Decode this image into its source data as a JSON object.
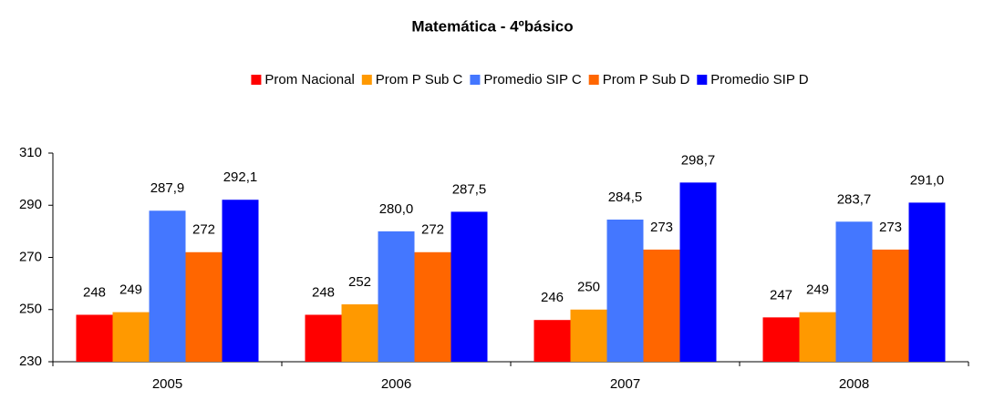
{
  "chart_data": {
    "type": "bar",
    "title": "Matemática - 4ºbásico",
    "categories": [
      "2005",
      "2006",
      "2007",
      "2008"
    ],
    "series": [
      {
        "name": "Prom Nacional",
        "color": "#ff0000",
        "values": [
          248,
          248,
          246,
          247
        ],
        "value_labels": [
          "248",
          "248",
          "246",
          "247"
        ]
      },
      {
        "name": "Prom P Sub C",
        "color": "#ff9900",
        "values": [
          249,
          252,
          250,
          249
        ],
        "value_labels": [
          "249",
          "252",
          "250",
          "249"
        ]
      },
      {
        "name": "Promedio SIP C",
        "color": "#4477ff",
        "values": [
          287.9,
          280.0,
          284.5,
          283.7
        ],
        "value_labels": [
          "287,9",
          "280,0",
          "284,5",
          "283,7"
        ]
      },
      {
        "name": "Prom P Sub D",
        "color": "#ff6600",
        "values": [
          272,
          272,
          273,
          273
        ],
        "value_labels": [
          "272",
          "272",
          "273",
          "273"
        ]
      },
      {
        "name": "Promedio SIP D",
        "color": "#0000ff",
        "values": [
          292.1,
          287.5,
          298.7,
          291.0
        ],
        "value_labels": [
          "292,1",
          "287,5",
          "298,7",
          "291,0"
        ]
      }
    ],
    "ylim": [
      230,
      310
    ],
    "yticks": [
      230,
      250,
      270,
      290,
      310
    ],
    "grid": false,
    "legend": "top"
  }
}
